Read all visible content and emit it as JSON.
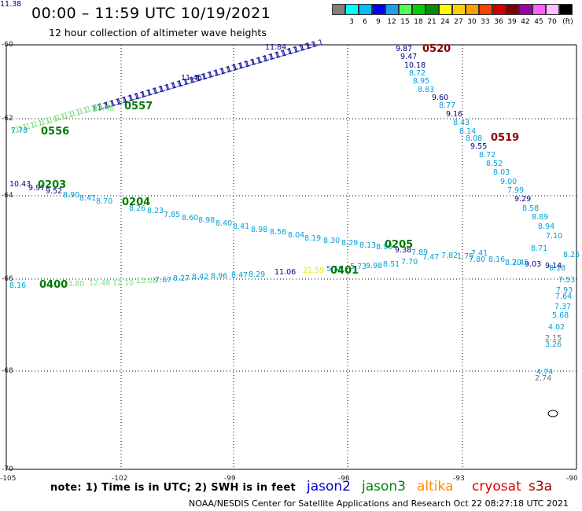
{
  "header": {
    "title": "00:00 – 11:59 UTC 10/19/2021",
    "subtitle": "12 hour collection of altimeter wave heights"
  },
  "colorbar": {
    "unit": "(ft)",
    "items": [
      {
        "color": "#7f7f7f",
        "label": ""
      },
      {
        "color": "#00ffff",
        "label": "3"
      },
      {
        "color": "#00bfff",
        "label": "6"
      },
      {
        "color": "#0000ff",
        "label": "9"
      },
      {
        "color": "#1a9ef0",
        "label": "12"
      },
      {
        "color": "#55ff55",
        "label": "15"
      },
      {
        "color": "#00d000",
        "label": "18"
      },
      {
        "color": "#009000",
        "label": "21"
      },
      {
        "color": "#ffff00",
        "label": "24"
      },
      {
        "color": "#ffd000",
        "label": "27"
      },
      {
        "color": "#ffa000",
        "label": "30"
      },
      {
        "color": "#ff4000",
        "label": "33"
      },
      {
        "color": "#d00000",
        "label": "36"
      },
      {
        "color": "#800000",
        "label": "39"
      },
      {
        "color": "#a000a0",
        "label": "42"
      },
      {
        "color": "#ff60ff",
        "label": "45"
      },
      {
        "color": "#ffc0ff",
        "label": "70"
      },
      {
        "color": "#000000",
        "label": ""
      }
    ]
  },
  "axes": {
    "lat_labels": [
      "-60",
      "-62",
      "-64",
      "-66",
      "-68",
      "-70"
    ],
    "lon_labels": [
      "-105",
      "-102",
      "-99",
      "-96",
      "-93",
      "-90"
    ]
  },
  "tracks": {
    "time_labels": [
      {
        "text": "0520",
        "color": "#8b0000"
      },
      {
        "text": "0519",
        "color": "#8b0000"
      },
      {
        "text": "0557",
        "color": "#007a00"
      },
      {
        "text": "0556",
        "color": "#007a00"
      },
      {
        "text": "0203",
        "color": "#007a00"
      },
      {
        "text": "0204",
        "color": "#007a00"
      },
      {
        "text": "0205",
        "color": "#007a00"
      },
      {
        "text": "0401",
        "color": "#007a00"
      },
      {
        "text": "0400",
        "color": "#007a00"
      }
    ],
    "readings": [
      {
        "text": "9.87",
        "color": "#00008b"
      },
      {
        "text": "9.47",
        "color": "#00008b"
      },
      {
        "text": "10.18",
        "color": "#00008b"
      },
      {
        "text": "8.72",
        "color": "#00a0d8"
      },
      {
        "text": "8.95",
        "color": "#00a0d8"
      },
      {
        "text": "8.83",
        "color": "#00a0d8"
      },
      {
        "text": "9.60",
        "color": "#00008b"
      },
      {
        "text": "8.77",
        "color": "#00a0d8"
      },
      {
        "text": "9.16",
        "color": "#00008b"
      },
      {
        "text": "8.43",
        "color": "#00a0d8"
      },
      {
        "text": "8.14",
        "color": "#00a0d8"
      },
      {
        "text": "8.08",
        "color": "#00a0d8"
      },
      {
        "text": "9.55",
        "color": "#00008b"
      },
      {
        "text": "8.72",
        "color": "#00a0d8"
      },
      {
        "text": "8.52",
        "color": "#00a0d8"
      },
      {
        "text": "8.03",
        "color": "#00a0d8"
      },
      {
        "text": "9.00",
        "color": "#00a0d8"
      },
      {
        "text": "7.99",
        "color": "#00a0d8"
      },
      {
        "text": "9.29",
        "color": "#00008b"
      },
      {
        "text": "8.58",
        "color": "#00a0d8"
      },
      {
        "text": "8.89",
        "color": "#00a0d8"
      },
      {
        "text": "8.94",
        "color": "#00a0d8"
      },
      {
        "text": "7.10",
        "color": "#00a0d8"
      },
      {
        "text": "8.18",
        "color": "#00a0d8"
      },
      {
        "text": "9.03",
        "color": "#00008b"
      },
      {
        "text": "9.14",
        "color": "#00008b"
      },
      {
        "text": "8.25",
        "color": "#00a0d8"
      },
      {
        "text": "7.53",
        "color": "#00a0d8"
      },
      {
        "text": "7.93",
        "color": "#00a0d8"
      },
      {
        "text": "7.64",
        "color": "#00a0d8"
      },
      {
        "text": "7.37",
        "color": "#00a0d8"
      },
      {
        "text": "5.68",
        "color": "#00a0d8"
      },
      {
        "text": "4.02",
        "color": "#00a0d8"
      },
      {
        "text": "2.15",
        "color": "#707070"
      },
      {
        "text": "3.26",
        "color": "#00a0d8"
      },
      {
        "text": "4.74",
        "color": "#00a0d8"
      },
      {
        "text": "2.74",
        "color": "#707070"
      },
      {
        "text": "10.43",
        "color": "#00008b"
      },
      {
        "text": "9.97",
        "color": "#00008b"
      },
      {
        "text": "9.52",
        "color": "#00008b"
      },
      {
        "text": "8.90",
        "color": "#00a0d8"
      },
      {
        "text": "8.41",
        "color": "#00a0d8"
      },
      {
        "text": "8.70",
        "color": "#00a0d8"
      },
      {
        "text": "8.26",
        "color": "#00a0d8"
      },
      {
        "text": "8.23",
        "color": "#00a0d8"
      },
      {
        "text": "7.85",
        "color": "#00a0d8"
      },
      {
        "text": "8.60",
        "color": "#00a0d8"
      },
      {
        "text": "8.98",
        "color": "#00a0d8"
      },
      {
        "text": "8.40",
        "color": "#00a0d8"
      },
      {
        "text": "8.41",
        "color": "#00a0d8"
      },
      {
        "text": "8.98",
        "color": "#00a0d8"
      },
      {
        "text": "8.56",
        "color": "#00a0d8"
      },
      {
        "text": "8.04",
        "color": "#00a0d8"
      },
      {
        "text": "8.19",
        "color": "#00a0d8"
      },
      {
        "text": "8.30",
        "color": "#00a0d8"
      },
      {
        "text": "8.29",
        "color": "#00a0d8"
      },
      {
        "text": "8.13",
        "color": "#00a0d8"
      },
      {
        "text": "8.90",
        "color": "#00a0d8"
      },
      {
        "text": "9.38",
        "color": "#00008b"
      },
      {
        "text": "7.89",
        "color": "#00a0d8"
      },
      {
        "text": "7.47",
        "color": "#00a0d8"
      },
      {
        "text": "7.82",
        "color": "#00a0d8"
      },
      {
        "text": "1.75",
        "color": "#707070"
      },
      {
        "text": "7.41",
        "color": "#00a0d8"
      },
      {
        "text": "7.80",
        "color": "#00a0d8"
      },
      {
        "text": "8.16",
        "color": "#00a0d8"
      },
      {
        "text": "7.45",
        "color": "#00a0d8"
      },
      {
        "text": "8.71",
        "color": "#00a0d8"
      },
      {
        "text": "8.20",
        "color": "#00a0d8"
      },
      {
        "text": "8.16",
        "color": "#00a0d8"
      },
      {
        "text": "13.80",
        "color": "#7ee07e"
      },
      {
        "text": "12.48",
        "color": "#7ee07e"
      },
      {
        "text": "12.10",
        "color": "#7ee07e"
      },
      {
        "text": "13.08",
        "color": "#7ee07e"
      },
      {
        "text": "7.67",
        "color": "#00a0d8"
      },
      {
        "text": "8.27",
        "color": "#00a0d8"
      },
      {
        "text": "8.42",
        "color": "#00a0d8"
      },
      {
        "text": "8.96",
        "color": "#00a0d8"
      },
      {
        "text": "8.47",
        "color": "#00a0d8"
      },
      {
        "text": "8.29",
        "color": "#00a0d8"
      },
      {
        "text": "11.06",
        "color": "#00008b"
      },
      {
        "text": "21.59",
        "color": "#e8e800"
      },
      {
        "text": "5.58",
        "color": "#00a0d8"
      },
      {
        "text": "5.73",
        "color": "#00a0d8"
      },
      {
        "text": "9.98",
        "color": "#00a0d8"
      },
      {
        "text": "8.51",
        "color": "#00a0d8"
      },
      {
        "text": "7.70",
        "color": "#00a0d8"
      },
      {
        "text": "7.78",
        "color": "#00a0d8"
      },
      {
        "text": "13.48",
        "color": "#7ee07e"
      },
      {
        "text": "11.84",
        "color": "#00008b"
      },
      {
        "text": "11.45",
        "color": "#00008b"
      },
      {
        "text": "11.38",
        "color": "#00008b"
      }
    ]
  },
  "note": "note: 1) Time is in UTC; 2) SWH is in feet",
  "legend": [
    {
      "text": "jason2",
      "color": "#0000cc"
    },
    {
      "text": "jason3",
      "color": "#008800"
    },
    {
      "text": "altika",
      "color": "#ff8c00"
    },
    {
      "text": "cryosat",
      "color": "#dd0000"
    },
    {
      "text": "s3a",
      "color": "#990000"
    }
  ],
  "footer": "NOAA/NESDIS Center for Satellite Applications and Research     Oct 22 08:27:18 UTC 2021"
}
